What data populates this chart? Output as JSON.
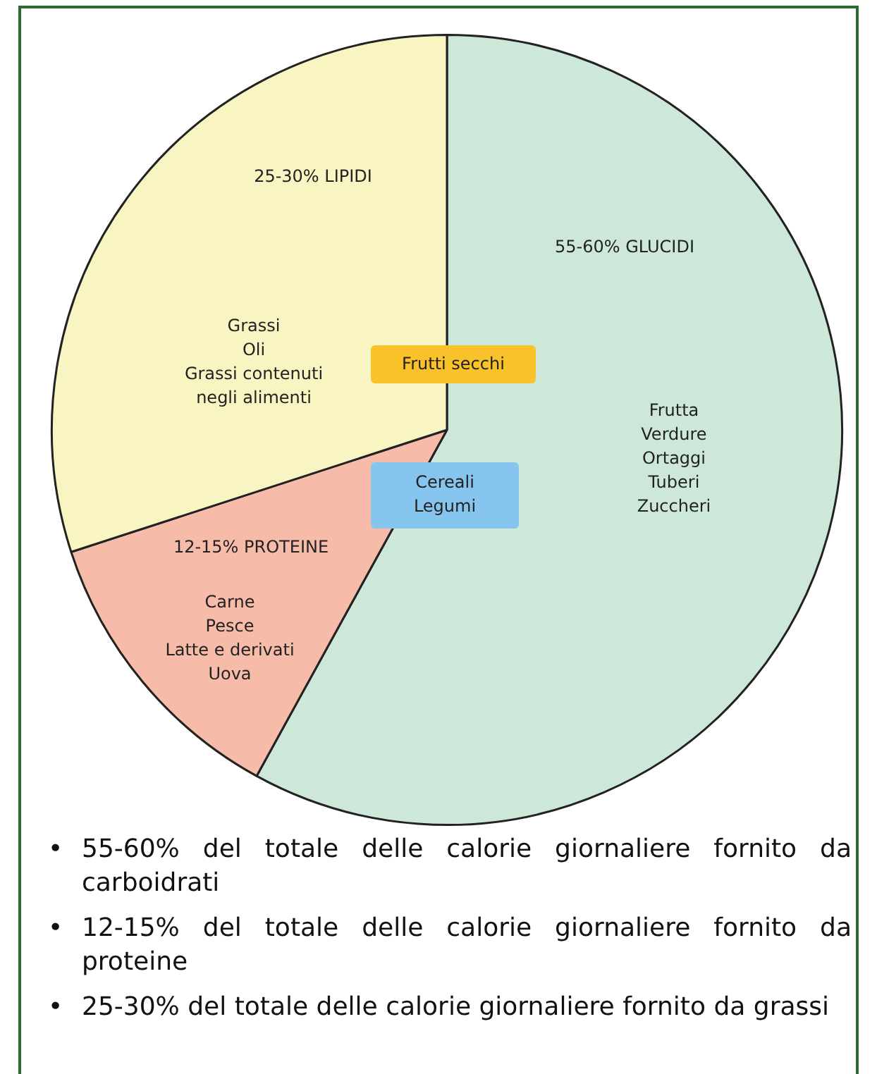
{
  "chart_data": {
    "type": "pie",
    "categories": [
      "55-60% GLUCIDI",
      "12-15% PROTEINE",
      "25-30% LIPIDI"
    ],
    "values": [
      58,
      12,
      30
    ],
    "colors": [
      "#cde8d9",
      "#f7bba9",
      "#f8f5c2"
    ],
    "legend": false,
    "annotations": [
      "Frutta\nVerdure\nOrtaggi\nTuberi\nZuccheri",
      "Carne\nPesce\nLatte e derivati\nUova",
      "Grassi\nOli\nGrassi contenuti\nnegli alimenti",
      "Frutti secchi",
      "Cereali\nLegumi",
      "• 55-60% del totale delle calorie giornaliere fornito da carboidrati",
      "• 12-15% del totale delle calorie giornaliere fornito da proteine",
      "• 25-30% del totale delle calorie giornaliere fornito da grassi"
    ]
  }
}
